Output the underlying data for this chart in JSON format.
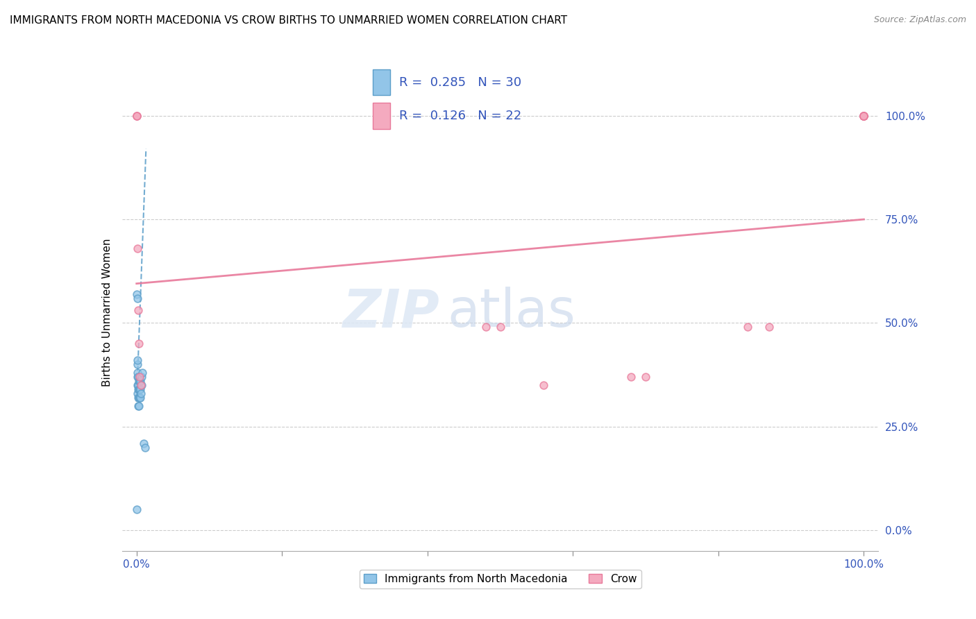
{
  "title": "IMMIGRANTS FROM NORTH MACEDONIA VS CROW BIRTHS TO UNMARRIED WOMEN CORRELATION CHART",
  "source": "Source: ZipAtlas.com",
  "ylabel": "Births to Unmarried Women",
  "legend_label1": "Immigrants from North Macedonia",
  "legend_label2": "Crow",
  "R1": 0.285,
  "N1": 30,
  "R2": 0.126,
  "N2": 22,
  "color_blue": "#92C5E8",
  "color_pink": "#F4AABF",
  "trendline_blue": "#5B9EC9",
  "trendline_pink": "#E8799A",
  "watermark_zip": "ZIP",
  "watermark_atlas": "atlas",
  "blue_scatter_x": [
    0.0,
    0.0,
    0.001,
    0.001,
    0.001,
    0.001,
    0.001,
    0.001,
    0.001,
    0.002,
    0.002,
    0.002,
    0.002,
    0.002,
    0.003,
    0.003,
    0.003,
    0.003,
    0.004,
    0.004,
    0.004,
    0.005,
    0.005,
    0.005,
    0.006,
    0.007,
    0.007,
    0.008,
    0.01,
    0.012
  ],
  "blue_scatter_y": [
    0.05,
    0.57,
    0.56,
    0.33,
    0.35,
    0.37,
    0.38,
    0.4,
    0.41,
    0.3,
    0.32,
    0.34,
    0.35,
    0.37,
    0.3,
    0.32,
    0.34,
    0.36,
    0.32,
    0.34,
    0.36,
    0.32,
    0.34,
    0.36,
    0.33,
    0.35,
    0.37,
    0.38,
    0.21,
    0.2
  ],
  "pink_scatter_x": [
    0.0,
    0.0,
    0.0,
    0.001,
    0.002,
    0.003,
    0.004,
    0.006,
    0.84,
    0.87,
    0.48,
    0.5,
    0.56,
    0.68,
    0.7,
    1.0,
    1.0,
    1.0,
    1.0,
    1.0,
    1.0,
    1.0
  ],
  "pink_scatter_y": [
    1.0,
    1.0,
    1.0,
    0.68,
    0.53,
    0.45,
    0.37,
    0.35,
    0.49,
    0.49,
    0.49,
    0.49,
    0.35,
    0.37,
    0.37,
    1.0,
    1.0,
    1.0,
    1.0,
    1.0,
    1.0,
    1.0
  ],
  "xlim": [
    -0.02,
    1.02
  ],
  "ylim": [
    -0.05,
    1.1
  ],
  "xticks": [
    0.0,
    0.2,
    0.4,
    0.6,
    0.8,
    1.0
  ],
  "yticks": [
    0.0,
    0.25,
    0.5,
    0.75,
    1.0
  ],
  "xticklabels": [
    "0.0%",
    "",
    "",
    "",
    "",
    "100.0%"
  ],
  "yticklabels": [
    "0.0%",
    "25.0%",
    "50.0%",
    "75.0%",
    "100.0%"
  ],
  "blue_trend_x0": 0.0,
  "blue_trend_x1": 0.013,
  "blue_trend_y0": 0.31,
  "blue_trend_y1": 0.92,
  "pink_trend_x0": 0.0,
  "pink_trend_x1": 1.0,
  "pink_trend_y0": 0.595,
  "pink_trend_y1": 0.75
}
